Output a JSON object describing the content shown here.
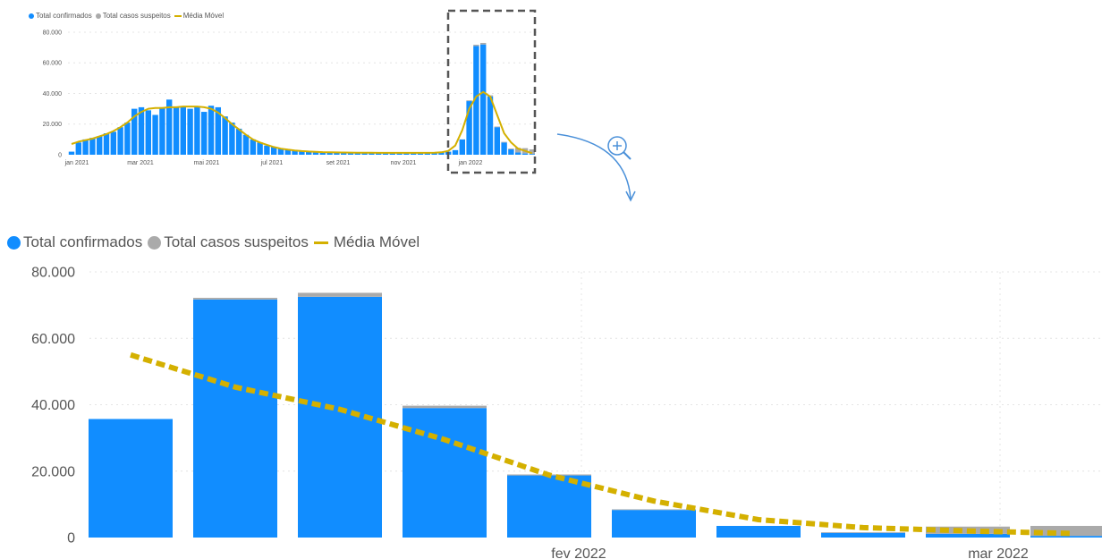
{
  "legend": {
    "confirmed": "Total confirmados",
    "suspected": "Total casos suspeitos",
    "moving_avg": "Média Móvel"
  },
  "colors": {
    "confirmed": "#118DFF",
    "suspected": "#AAAAAA",
    "moving_avg": "#D4B000",
    "grid": "#E4E4E4",
    "frame": "#555555",
    "arrow": "#4A90D9"
  },
  "icons": {
    "zoom": "zoom-in-icon",
    "arrow": "curved-arrow-icon"
  },
  "chart_data": [
    {
      "type": "bar",
      "title": "",
      "y_ticks": [
        "80.000",
        "60.000",
        "40.000",
        "20.000",
        "0"
      ],
      "ylim": [
        0,
        80000
      ],
      "x_tick_labels": [
        "jan 2021",
        "mar 2021",
        "mai 2021",
        "jul 2021",
        "set 2021",
        "nov 2021",
        "jan 2022"
      ],
      "grid": true,
      "series": [
        {
          "name": "Total confirmados",
          "values": [
            2000,
            8000,
            10000,
            11000,
            12000,
            14000,
            15000,
            18000,
            21000,
            30000,
            31000,
            29000,
            26000,
            31000,
            36000,
            31000,
            31000,
            30000,
            31000,
            28000,
            32000,
            31000,
            25000,
            21000,
            17000,
            13000,
            10000,
            8000,
            6000,
            5000,
            4000,
            3500,
            3000,
            2500,
            2200,
            2000,
            1800,
            1700,
            1600,
            1500,
            1400,
            1400,
            1300,
            1300,
            1200,
            1200,
            1200,
            1100,
            1100,
            1100,
            1200,
            1200,
            1300,
            1500,
            2000,
            3000,
            10000,
            35000,
            71000,
            72000,
            38000,
            18000,
            8000,
            3500,
            1500,
            800,
            500
          ]
        },
        {
          "name": "Total casos suspeitos",
          "values": [
            0,
            0,
            0,
            0,
            0,
            0,
            0,
            0,
            0,
            0,
            0,
            0,
            0,
            0,
            0,
            0,
            0,
            0,
            0,
            0,
            0,
            0,
            0,
            0,
            0,
            0,
            0,
            0,
            0,
            0,
            0,
            0,
            0,
            0,
            0,
            0,
            0,
            0,
            0,
            0,
            0,
            0,
            0,
            0,
            0,
            0,
            0,
            0,
            0,
            0,
            0,
            0,
            0,
            0,
            0,
            0,
            0,
            500,
            800,
            1000,
            800,
            400,
            400,
            500,
            3000,
            3500,
            3000
          ]
        },
        {
          "name": "Média Móvel",
          "type": "line",
          "values": [
            7000,
            8500,
            9500,
            10500,
            12000,
            13500,
            15500,
            18000,
            21000,
            25000,
            28000,
            30000,
            30500,
            30500,
            31000,
            31000,
            31500,
            31500,
            31500,
            31000,
            30000,
            27500,
            24000,
            20000,
            16500,
            13000,
            10000,
            8000,
            6500,
            5000,
            4000,
            3300,
            2800,
            2400,
            2100,
            1900,
            1700,
            1600,
            1500,
            1450,
            1400,
            1350,
            1300,
            1300,
            1250,
            1250,
            1200,
            1200,
            1200,
            1200,
            1200,
            1250,
            1350,
            1600,
            2500,
            6000,
            16000,
            30000,
            38000,
            41000,
            38000,
            26000,
            14000,
            8000,
            4000,
            2500,
            1000
          ]
        }
      ]
    },
    {
      "type": "bar",
      "title": "",
      "y_ticks": [
        "80.000",
        "60.000",
        "40.000",
        "20.000",
        "0"
      ],
      "ylim": [
        0,
        80000
      ],
      "x_tick_labels": [
        "fev 2022",
        "mar 2022"
      ],
      "grid": true,
      "series": [
        {
          "name": "Total confirmados",
          "values": [
            35700,
            71700,
            72500,
            39000,
            18700,
            8300,
            3500,
            1400,
            1100,
            500
          ]
        },
        {
          "name": "Total casos suspeitos",
          "values": [
            0,
            500,
            1200,
            700,
            300,
            200,
            0,
            200,
            2200,
            3000
          ]
        },
        {
          "name": "Média Móvel",
          "type": "line",
          "values": [
            55000,
            45300,
            38600,
            29500,
            18800,
            11000,
            5400,
            3000,
            2000,
            1200
          ]
        }
      ]
    }
  ]
}
